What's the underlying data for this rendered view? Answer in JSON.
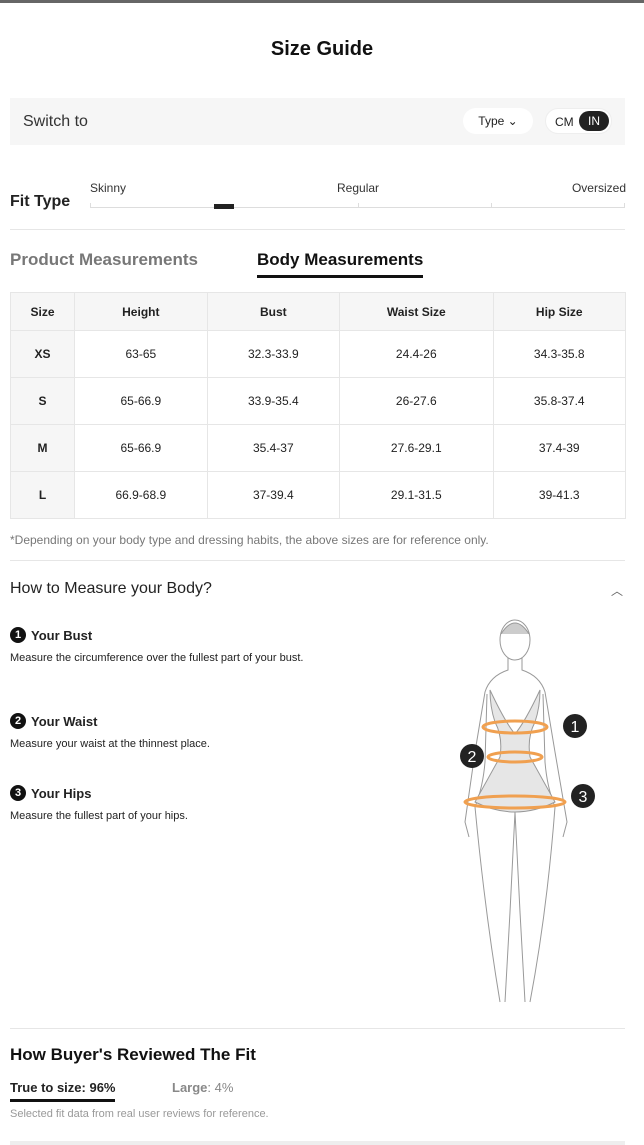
{
  "title": "Size Guide",
  "switch": {
    "label": "Switch to",
    "type_label": "Type",
    "unit_options": [
      "CM",
      "IN"
    ],
    "unit_selected": "IN"
  },
  "fit": {
    "title": "Fit Type",
    "labels": [
      "Skinny",
      "Regular",
      "Oversized"
    ],
    "level": "Skinny-Regular"
  },
  "tabs": [
    {
      "label": "Product Measurements",
      "active": false
    },
    {
      "label": "Body Measurements",
      "active": true
    }
  ],
  "table": {
    "headers": [
      "Size",
      "Height",
      "Bust",
      "Waist Size",
      "Hip Size"
    ],
    "rows": [
      [
        "XS",
        "63-65",
        "32.3-33.9",
        "24.4-26",
        "34.3-35.8"
      ],
      [
        "S",
        "65-66.9",
        "33.9-35.4",
        "26-27.6",
        "35.8-37.4"
      ],
      [
        "M",
        "65-66.9",
        "35.4-37",
        "27.6-29.1",
        "37.4-39"
      ],
      [
        "L",
        "66.9-68.9",
        "37-39.4",
        "29.1-31.5",
        "39-41.3"
      ]
    ]
  },
  "note": "*Depending on your body type and dressing habits, the above sizes are for reference only.",
  "howto": {
    "title": "How to Measure your Body?",
    "steps": [
      {
        "num": "1",
        "title": "Your Bust",
        "text": "Measure the circumference over the fullest part of your bust."
      },
      {
        "num": "2",
        "title": "Your Waist",
        "text": "Measure your waist at the thinnest place."
      },
      {
        "num": "3",
        "title": "Your Hips",
        "text": "Measure the fullest part of your hips."
      }
    ],
    "accent": "#f0a050"
  },
  "reviews": {
    "title": "How Buyer's Reviewed The Fit",
    "true_to_size": "True to size: 96%",
    "large_label": "Large",
    "large_value": ": 4%",
    "note": "Selected fit data from real user reviews for reference."
  }
}
